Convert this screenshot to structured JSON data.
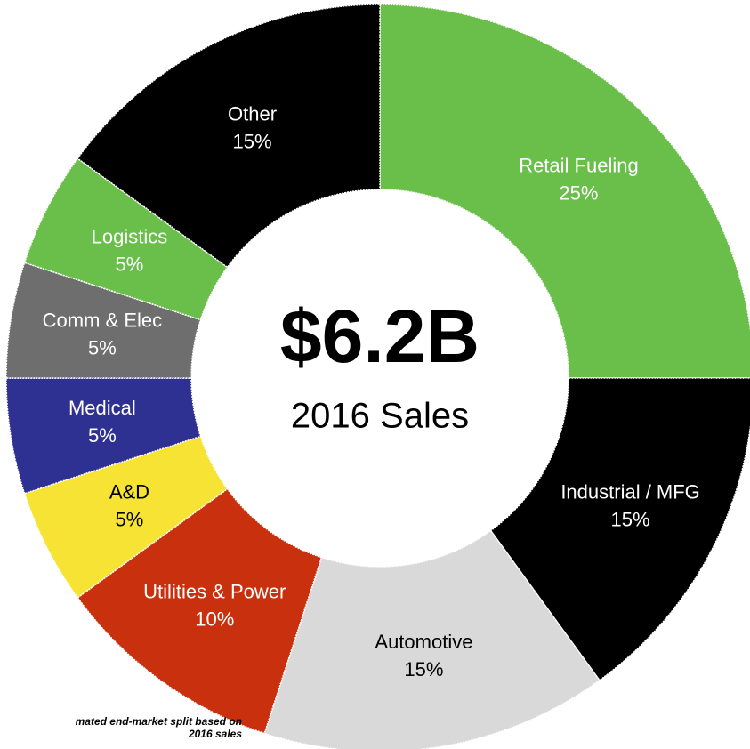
{
  "chart_data": {
    "type": "pie",
    "center_title": "$6.2B",
    "center_subtitle": "2016 Sales",
    "footnote": [
      "mated end-market split based on",
      "2016 sales"
    ],
    "categories": [
      "Retail Fueling",
      "Industrial / MFG",
      "Automotive",
      "Utilities & Power",
      "A&D",
      "Medical",
      "Comm & Elec",
      "Logistics",
      "Other"
    ],
    "values": [
      25,
      15,
      15,
      10,
      5,
      5,
      5,
      5,
      15
    ],
    "value_labels": [
      "25%",
      "15%",
      "15%",
      "10%",
      "5%",
      "5%",
      "5%",
      "5%",
      "15%"
    ],
    "colors": [
      "#6abf4b",
      "#000000",
      "#d9d9d9",
      "#c8300e",
      "#f7e334",
      "#2e3192",
      "#6e6e6e",
      "#6abf4b",
      "#000000"
    ],
    "label_colors": [
      "#ffffff",
      "#ffffff",
      "#000000",
      "#ffffff",
      "#000000",
      "#ffffff",
      "#ffffff",
      "#ffffff",
      "#ffffff"
    ]
  }
}
